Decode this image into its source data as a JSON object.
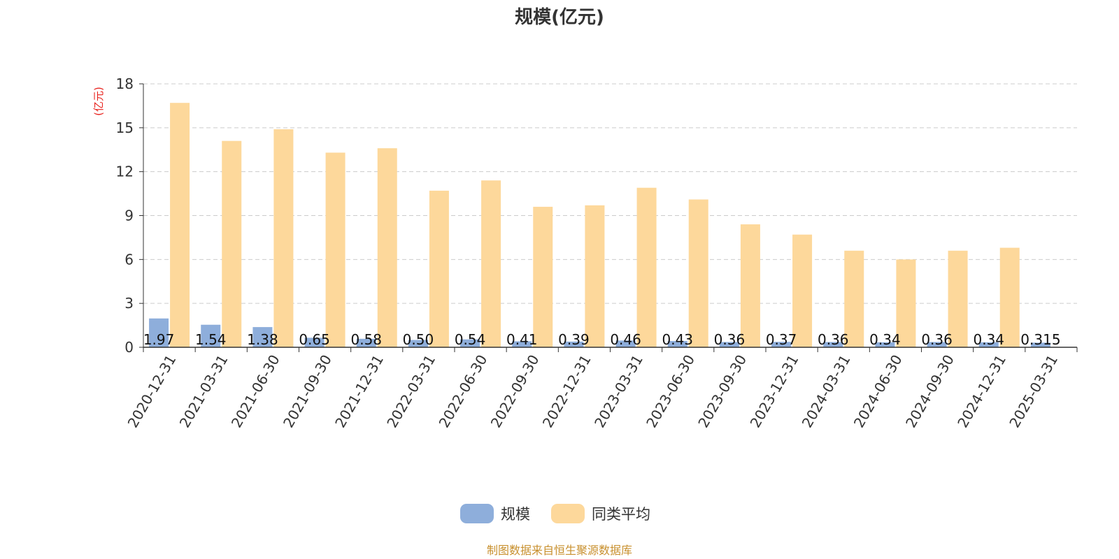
{
  "colors": {
    "series_scale": "#8eaedb",
    "series_avg": "#fdd89b",
    "unit_label": "#e8231e",
    "footer": "#c8902e",
    "grid": "#cccccc"
  },
  "footer": "制图数据来自恒生聚源数据库",
  "chart_data": {
    "type": "bar",
    "title": "规模(亿元)",
    "ylabel": "(亿元)",
    "xlabel": "",
    "ylim": [
      0,
      18
    ],
    "yticks": [
      0,
      3,
      6,
      9,
      12,
      15,
      18
    ],
    "grid": true,
    "legend_position": "bottom-center",
    "categories": [
      "2020-12-31",
      "2021-03-31",
      "2021-06-30",
      "2021-09-30",
      "2021-12-31",
      "2022-03-31",
      "2022-06-30",
      "2022-09-30",
      "2022-12-31",
      "2023-03-31",
      "2023-06-30",
      "2023-09-30",
      "2023-12-31",
      "2024-03-31",
      "2024-06-30",
      "2024-09-30",
      "2024-12-31",
      "2025-03-31"
    ],
    "series": [
      {
        "name": "规模",
        "values": [
          1.97,
          1.54,
          1.38,
          0.65,
          0.58,
          0.5,
          0.54,
          0.41,
          0.39,
          0.46,
          0.43,
          0.36,
          0.37,
          0.36,
          0.34,
          0.36,
          0.34,
          0.315
        ],
        "labels": [
          "1.97",
          "1.54",
          "1.38",
          "0.65",
          "0.58",
          "0.50",
          "0.54",
          "0.41",
          "0.39",
          "0.46",
          "0.43",
          "0.36",
          "0.37",
          "0.36",
          "0.34",
          "0.36",
          "0.34",
          "0.315"
        ]
      },
      {
        "name": "同类平均",
        "values": [
          16.7,
          14.1,
          14.9,
          13.3,
          13.6,
          10.7,
          11.4,
          9.6,
          9.7,
          10.9,
          10.1,
          8.4,
          7.7,
          6.6,
          6.0,
          6.6,
          6.8,
          null
        ]
      }
    ]
  }
}
